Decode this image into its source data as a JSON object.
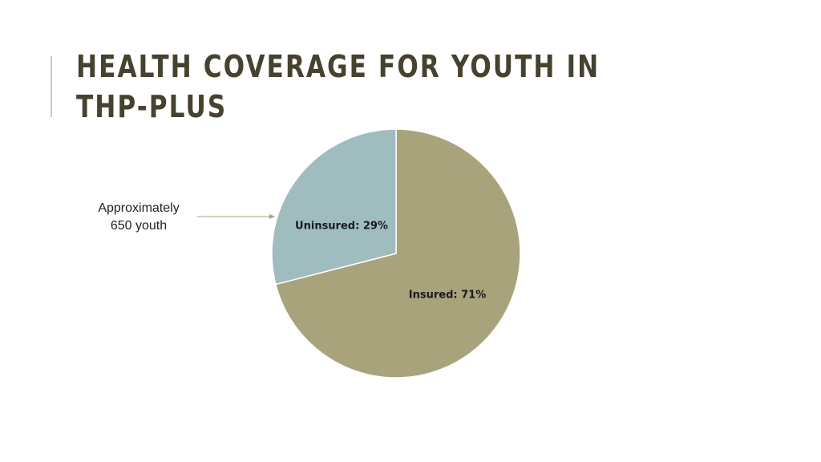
{
  "slide": {
    "title_line1": "HEALTH COVERAGE FOR YOUTH IN",
    "title_line2": "THP-PLUS",
    "callout_line1": "Approximately",
    "callout_line2": "650 youth",
    "accent_color": "#b9cfcd",
    "title_color": "#46422e"
  },
  "chart_data": {
    "type": "pie",
    "slices": [
      {
        "label": "Insured",
        "value": 71,
        "text": "Insured: 71%",
        "color": "#a8a37a"
      },
      {
        "label": "Uninsured",
        "value": 29,
        "text": "Uninsured: 29%",
        "color": "#9fbcbf"
      }
    ],
    "start": "top",
    "direction": "clockwise",
    "legend": "none",
    "labels": "inside"
  }
}
